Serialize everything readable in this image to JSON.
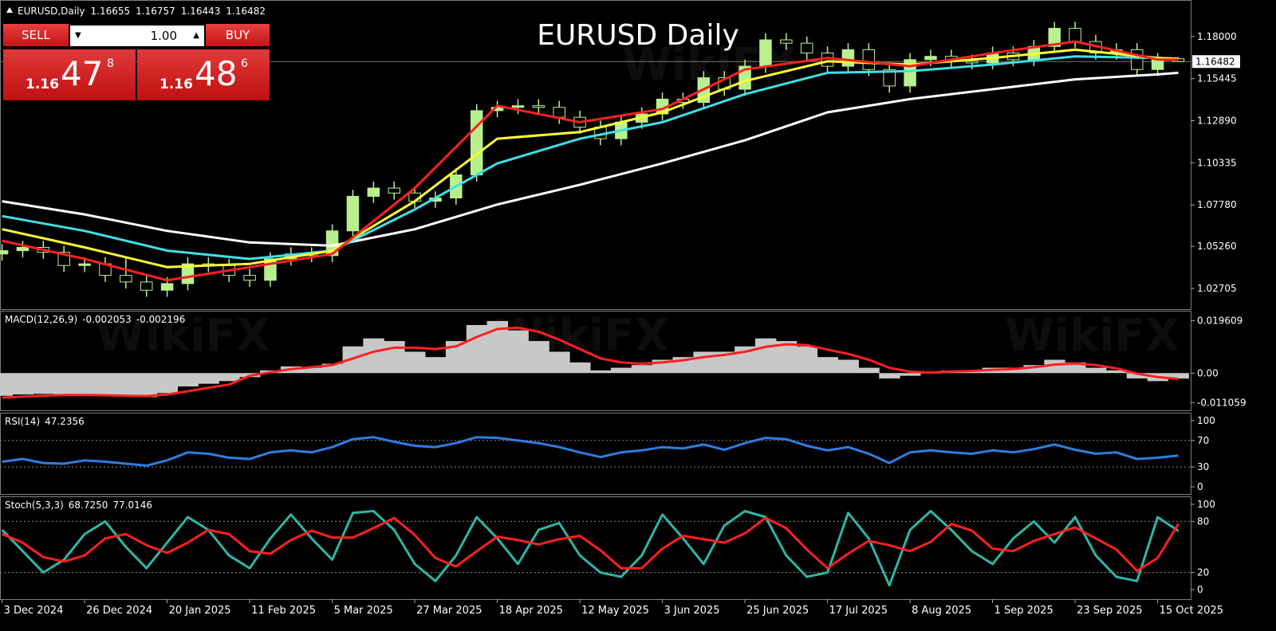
{
  "watermark": "WikiFX",
  "trade_panel": {
    "sell_label": "SELL",
    "buy_label": "BUY",
    "lot": "1.00",
    "sell_price": {
      "prefix": "1.16",
      "big": "47",
      "small": "8"
    },
    "buy_price": {
      "prefix": "1.16",
      "big": "48",
      "small": "6"
    }
  },
  "chart_data": [
    {
      "type": "candlestick",
      "title": "EURUSD Daily",
      "symbol_label": "EURUSD,Daily",
      "up_color": "#b9f08e",
      "down_color": "#000000",
      "wick_color": "#b9f08e",
      "open": [
        1.048,
        1.05,
        1.052,
        1.049,
        1.041,
        1.042,
        1.035,
        1.031,
        1.026,
        1.03,
        1.042,
        1.041,
        1.035,
        1.032,
        1.045,
        1.048,
        1.047,
        1.062,
        1.083,
        1.088,
        1.085,
        1.08,
        1.082,
        1.096,
        1.135,
        1.137,
        1.138,
        1.137,
        1.131,
        1.125,
        1.118,
        1.128,
        1.133,
        1.142,
        1.14,
        1.155,
        1.148,
        1.162,
        1.178,
        1.176,
        1.17,
        1.162,
        1.172,
        1.16,
        1.15,
        1.166,
        1.168,
        1.165,
        1.164,
        1.17,
        1.166,
        1.174,
        1.185,
        1.177,
        1.17,
        1.172,
        1.16,
        1.16655
      ],
      "high": [
        1.054,
        1.056,
        1.056,
        1.053,
        1.046,
        1.046,
        1.046,
        1.035,
        1.034,
        1.046,
        1.046,
        1.045,
        1.039,
        1.049,
        1.052,
        1.052,
        1.066,
        1.087,
        1.092,
        1.092,
        1.089,
        1.086,
        1.1,
        1.139,
        1.141,
        1.142,
        1.142,
        1.141,
        1.135,
        1.129,
        1.132,
        1.137,
        1.146,
        1.146,
        1.159,
        1.159,
        1.166,
        1.182,
        1.182,
        1.18,
        1.174,
        1.176,
        1.176,
        1.164,
        1.17,
        1.172,
        1.172,
        1.169,
        1.174,
        1.174,
        1.178,
        1.189,
        1.189,
        1.181,
        1.176,
        1.176,
        1.17,
        1.16757
      ],
      "low": [
        1.044,
        1.046,
        1.045,
        1.037,
        1.037,
        1.031,
        1.027,
        1.022,
        1.022,
        1.026,
        1.037,
        1.031,
        1.028,
        1.028,
        1.041,
        1.043,
        1.043,
        1.058,
        1.079,
        1.081,
        1.076,
        1.076,
        1.078,
        1.092,
        1.131,
        1.133,
        1.133,
        1.127,
        1.121,
        1.114,
        1.114,
        1.124,
        1.129,
        1.136,
        1.136,
        1.144,
        1.144,
        1.158,
        1.172,
        1.166,
        1.158,
        1.158,
        1.156,
        1.146,
        1.146,
        1.162,
        1.161,
        1.16,
        1.16,
        1.162,
        1.162,
        1.17,
        1.173,
        1.166,
        1.166,
        1.156,
        1.156,
        1.16443
      ],
      "close": [
        1.05,
        1.052,
        1.049,
        1.041,
        1.042,
        1.035,
        1.031,
        1.026,
        1.03,
        1.042,
        1.041,
        1.035,
        1.032,
        1.045,
        1.048,
        1.047,
        1.062,
        1.083,
        1.088,
        1.085,
        1.08,
        1.082,
        1.096,
        1.135,
        1.137,
        1.138,
        1.137,
        1.131,
        1.125,
        1.118,
        1.128,
        1.133,
        1.142,
        1.14,
        1.155,
        1.148,
        1.162,
        1.178,
        1.176,
        1.17,
        1.162,
        1.172,
        1.16,
        1.15,
        1.166,
        1.168,
        1.165,
        1.164,
        1.17,
        1.166,
        1.174,
        1.185,
        1.177,
        1.17,
        1.172,
        1.16,
        1.166,
        1.16482
      ],
      "lines": {
        "x": [
          0,
          4,
          8,
          12,
          16,
          20,
          24,
          28,
          32,
          36,
          40,
          44,
          48,
          52,
          56,
          57
        ],
        "series": [
          {
            "color": "#ffffff",
            "values": [
              1.08,
              1.072,
              1.062,
              1.055,
              1.053,
              1.063,
              1.078,
              1.09,
              1.103,
              1.117,
              1.134,
              1.142,
              1.148,
              1.154,
              1.157,
              1.158
            ]
          },
          {
            "color": "#3fe0e6",
            "values": [
              1.071,
              1.062,
              1.05,
              1.045,
              1.05,
              1.075,
              1.103,
              1.118,
              1.128,
              1.145,
              1.158,
              1.159,
              1.163,
              1.168,
              1.167,
              1.1665
            ]
          },
          {
            "color": "#ffff33",
            "values": [
              1.063,
              1.052,
              1.04,
              1.042,
              1.05,
              1.08,
              1.118,
              1.122,
              1.134,
              1.153,
              1.165,
              1.163,
              1.167,
              1.172,
              1.167,
              1.1665
            ]
          },
          {
            "color": "#ff2020",
            "values": [
              1.056,
              1.045,
              1.032,
              1.04,
              1.048,
              1.088,
              1.138,
              1.128,
              1.136,
              1.16,
              1.167,
              1.162,
              1.17,
              1.177,
              1.166,
              1.166
            ]
          }
        ]
      },
      "xlim": [
        -0.1,
        57.6
      ],
      "xticks": [
        {
          "value": 0,
          "label": "3 Dec 2024"
        },
        {
          "value": 4,
          "label": "26 Dec 2024"
        },
        {
          "value": 8,
          "label": "20 Jan 2025"
        },
        {
          "value": 12,
          "label": "11 Feb 2025"
        },
        {
          "value": 16,
          "label": "5 Mar 2025"
        },
        {
          "value": 20,
          "label": "27 Mar 2025"
        },
        {
          "value": 24,
          "label": "18 Apr 2025"
        },
        {
          "value": 28,
          "label": "12 May 2025"
        },
        {
          "value": 32,
          "label": "3 Jun 2025"
        },
        {
          "value": 36,
          "label": "25 Jun 2025"
        },
        {
          "value": 40,
          "label": "17 Jul 2025"
        },
        {
          "value": 44,
          "label": "8 Aug 2025"
        },
        {
          "value": 48,
          "label": "1 Sep 2025"
        },
        {
          "value": 52,
          "label": "23 Sep 2025"
        },
        {
          "value": 56,
          "label": "15 Oct 2025"
        }
      ],
      "ylim": [
        1.0145,
        1.2022
      ],
      "yticks": [
        {
          "value": 1.18,
          "label": "1.18000"
        },
        1.15445,
        {
          "value": 1.1289,
          "label": "1.12890"
        },
        1.10335,
        {
          "value": 1.0778,
          "label": "1.07780"
        },
        {
          "value": 1.0526,
          "label": "1.05260"
        },
        1.02705
      ]
    },
    {
      "type": "macd",
      "label": "MACD(12,26,9)",
      "histogram": {
        "color": "#c8c8c8",
        "values": [
          -0.0085,
          -0.008,
          -0.0078,
          -0.0082,
          -0.008,
          -0.0085,
          -0.0088,
          -0.009,
          -0.0075,
          -0.005,
          -0.004,
          -0.003,
          -0.0015,
          0.001,
          0.0025,
          0.002,
          0.0035,
          0.01,
          0.013,
          0.012,
          0.008,
          0.006,
          0.012,
          0.018,
          0.0195,
          0.016,
          0.012,
          0.008,
          0.004,
          0.001,
          0.002,
          0.003,
          0.005,
          0.006,
          0.008,
          0.008,
          0.01,
          0.013,
          0.012,
          0.01,
          0.006,
          0.005,
          0.002,
          -0.002,
          -0.001,
          0.0,
          0.001,
          0.001,
          0.002,
          0.002,
          0.003,
          0.005,
          0.004,
          0.002,
          0.001,
          -0.002,
          -0.003,
          -0.002053
        ]
      },
      "signal": {
        "color": "#ff2020",
        "values": [
          -0.0092,
          -0.0088,
          -0.0085,
          -0.0082,
          -0.0082,
          -0.0083,
          -0.0085,
          -0.0086,
          -0.008,
          -0.0068,
          -0.0055,
          -0.0043,
          -0.001,
          0.0003,
          0.0015,
          0.0022,
          0.003,
          0.0055,
          0.008,
          0.0095,
          0.0095,
          0.009,
          0.01,
          0.0135,
          0.0165,
          0.017,
          0.0155,
          0.0125,
          0.009,
          0.0055,
          0.004,
          0.0035,
          0.004,
          0.0048,
          0.006,
          0.0068,
          0.008,
          0.0098,
          0.0108,
          0.0105,
          0.0088,
          0.0072,
          0.005,
          0.002,
          0.0005,
          0.0002,
          0.0006,
          0.0008,
          0.0012,
          0.0015,
          0.0022,
          0.0032,
          0.0036,
          0.003,
          0.0018,
          -0.0002,
          -0.0015,
          -0.002196
        ]
      },
      "ylim": [
        -0.01394,
        0.02336
      ],
      "yticks": [
        0.019609,
        {
          "value": 0,
          "label": "0.00"
        },
        -0.011059
      ]
    },
    {
      "type": "line",
      "label": "RSI(14)",
      "series": [
        {
          "color": "#2f7de1",
          "values": [
            38,
            42,
            36,
            35,
            40,
            38,
            35,
            32,
            40,
            52,
            50,
            44,
            42,
            52,
            55,
            52,
            60,
            72,
            75,
            68,
            62,
            60,
            66,
            75,
            74,
            70,
            66,
            60,
            52,
            45,
            52,
            55,
            60,
            58,
            64,
            56,
            66,
            74,
            72,
            62,
            55,
            60,
            50,
            36,
            52,
            55,
            52,
            50,
            55,
            52,
            57,
            64,
            56,
            50,
            52,
            42,
            44,
            47.2356
          ]
        }
      ],
      "levels": [
        70,
        30
      ],
      "ylim": [
        -10.8,
        112
      ],
      "yticks": [
        100,
        70,
        30,
        0
      ]
    },
    {
      "type": "line",
      "label": "Stoch(5,3,3)",
      "readout": [
        "68.7250",
        "77.0146"
      ],
      "series": [
        {
          "color": "#2fb5a6",
          "values": [
            70,
            45,
            20,
            35,
            65,
            80,
            50,
            25,
            55,
            85,
            70,
            40,
            25,
            60,
            88,
            60,
            35,
            90,
            92,
            70,
            30,
            10,
            40,
            85,
            60,
            30,
            70,
            78,
            40,
            20,
            15,
            40,
            88,
            60,
            30,
            75,
            92,
            85,
            40,
            15,
            20,
            90,
            60,
            5,
            70,
            92,
            70,
            45,
            30,
            60,
            80,
            55,
            85,
            40,
            15,
            10,
            85,
            68.725
          ]
        },
        {
          "color": "#ff2020",
          "values": [
            65,
            55,
            38,
            33,
            40,
            60,
            65,
            52,
            43,
            55,
            70,
            65,
            45,
            42,
            58,
            69,
            61,
            61,
            72,
            84,
            64,
            37,
            27,
            45,
            62,
            58,
            53,
            59,
            63,
            46,
            25,
            25,
            48,
            63,
            59,
            55,
            66,
            84,
            72,
            47,
            25,
            42,
            57,
            52,
            45,
            56,
            77,
            69,
            48,
            45,
            57,
            65,
            73,
            60,
            47,
            22,
            37,
            77.0146
          ]
        }
      ],
      "levels": [
        80,
        20
      ],
      "ylim": [
        -11.2,
        109.3
      ],
      "yticks": [
        100,
        80,
        20,
        0
      ]
    }
  ]
}
